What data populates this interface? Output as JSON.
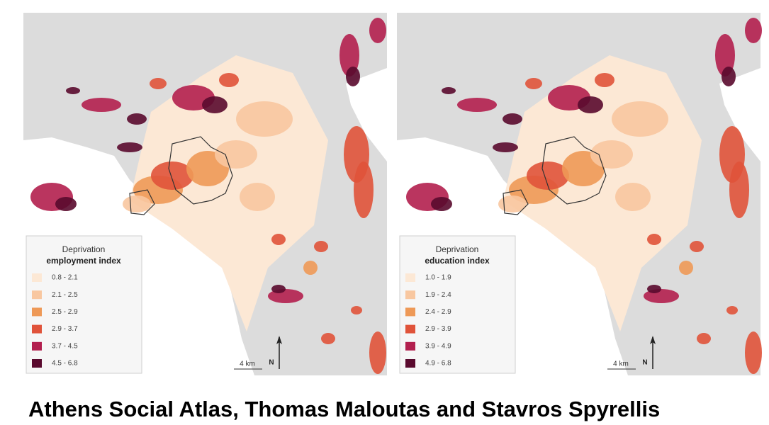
{
  "maps": [
    {
      "legend": {
        "title": "Deprivation",
        "subtitle": "employment index",
        "items": [
          {
            "label": "0.8 - 2.1",
            "color": "#fce8d5"
          },
          {
            "label": "2.1 - 2.5",
            "color": "#f8c7a0"
          },
          {
            "label": "2.5 - 2.9",
            "color": "#ee9957"
          },
          {
            "label": "2.9 - 3.7",
            "color": "#e0533a"
          },
          {
            "label": "3.7 - 4.5",
            "color": "#b21f4e"
          },
          {
            "label": "4.5 - 6.8",
            "color": "#5a0a2e"
          }
        ]
      },
      "scale": "4 km",
      "north": "N"
    },
    {
      "legend": {
        "title": "Deprivation",
        "subtitle": "education index",
        "items": [
          {
            "label": "1.0 - 1.9",
            "color": "#fce8d5"
          },
          {
            "label": "1.9 - 2.4",
            "color": "#f8c7a0"
          },
          {
            "label": "2.4 - 2.9",
            "color": "#ee9957"
          },
          {
            "label": "2.9 - 3.9",
            "color": "#e0533a"
          },
          {
            "label": "3.9 - 4.9",
            "color": "#b21f4e"
          },
          {
            "label": "4.9 - 6.8",
            "color": "#5a0a2e"
          }
        ]
      },
      "scale": "4 km",
      "north": "N"
    }
  ],
  "caption": "Athens Social Atlas, Thomas Maloutas and Stavros Spyrellis"
}
